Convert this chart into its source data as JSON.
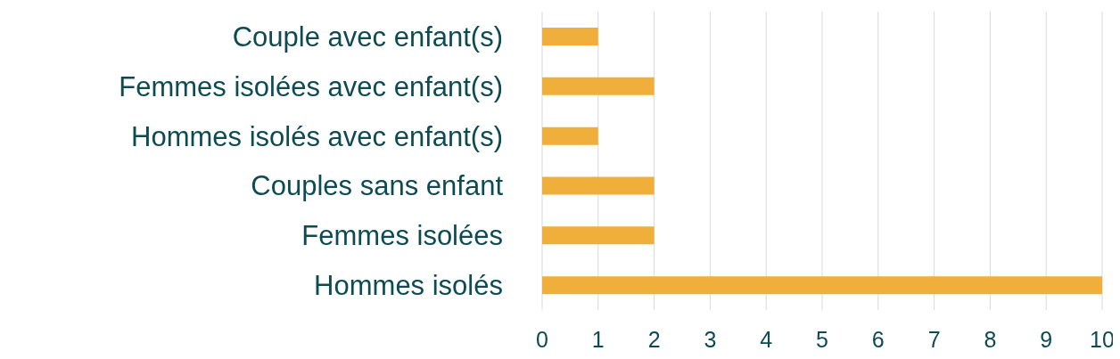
{
  "chart_data": {
    "type": "bar",
    "orientation": "horizontal",
    "categories": [
      "Couple avec enfant(s)",
      "Femmes isolées avec enfant(s)",
      "Hommes isolés avec enfant(s)",
      "Couples sans enfant",
      "Femmes isolées",
      "Hommes isolés"
    ],
    "values": [
      1,
      2,
      1,
      2,
      2,
      10
    ],
    "color": "#f0ae3a",
    "xlim": [
      0,
      10
    ],
    "xticks": [
      0,
      1,
      2,
      3,
      4,
      5,
      6,
      7,
      8,
      9,
      10
    ],
    "grid": "x",
    "legend": false
  }
}
